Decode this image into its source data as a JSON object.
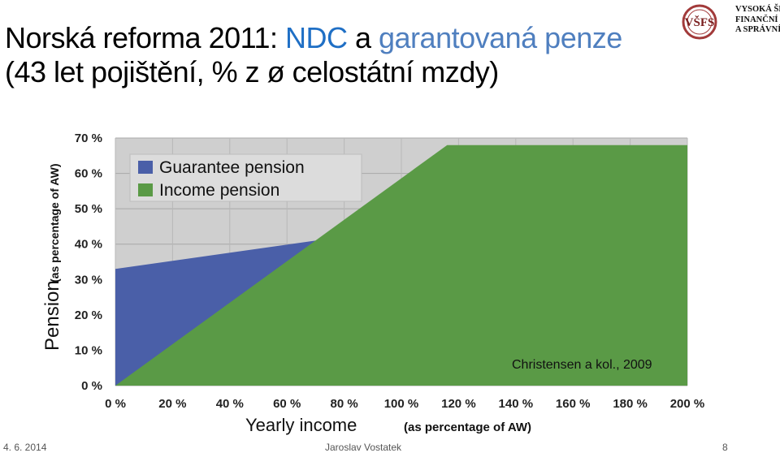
{
  "header": {
    "title_part1": "Norská reforma 2011: ",
    "title_ndc": "NDC",
    "title_part2": " a ",
    "title_guarantee": "garantovaná penze",
    "title_line2": "(43 let pojištění, % z ø celostátní mzdy)"
  },
  "logo": {
    "monogram": "VŠFS",
    "line1": "VYSOKÁ ŠKOLA",
    "line2": "FINANČNÍ",
    "line3": "A SPRÁVNÍ"
  },
  "footer": {
    "date": "4. 6. 2014",
    "author": "Jaroslav Vostatek",
    "page": "8"
  },
  "citation": "Christensen a kol., 2009",
  "colors": {
    "guarantee": "#4a5fa8",
    "income": "#5a9a46",
    "plot_bg": "#cfcfcf",
    "title_blue": "#1f6fc5"
  },
  "chart_data": {
    "type": "area",
    "xlabel": "Yearly income",
    "xlabel_suffix": "(as percentage of AW)",
    "ylabel": "Pension",
    "ylabel_suffix": "(as percentage of AW)",
    "xlim": [
      0,
      200
    ],
    "ylim": [
      0,
      70
    ],
    "x_ticks": [
      "0 %",
      "20 %",
      "40 %",
      "60 %",
      "80 %",
      "100 %",
      "120 %",
      "140 %",
      "160 %",
      "180 %",
      "200 %"
    ],
    "y_ticks": [
      "0 %",
      "10 %",
      "20 %",
      "30 %",
      "40 %",
      "50 %",
      "60 %",
      "70 %"
    ],
    "grid": true,
    "legend_position": "top-left",
    "stacked": false,
    "series": [
      {
        "name": "Guarantee pension",
        "color": "#4a5fa8",
        "x": [
          0,
          70,
          200
        ],
        "y": [
          33,
          41,
          41
        ]
      },
      {
        "name": "Income pension",
        "color": "#5a9a46",
        "x": [
          0,
          116,
          200
        ],
        "y": [
          0,
          68,
          68
        ]
      }
    ]
  }
}
